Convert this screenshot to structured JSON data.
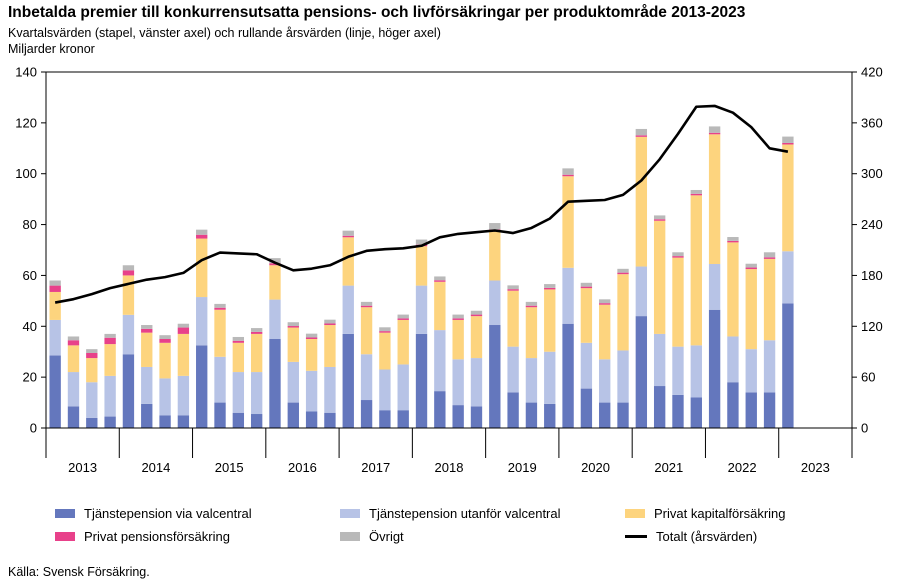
{
  "title": "Inbetalda premier till konkurrensutsatta pensions- och livförsäkringar per produktområde 2013-2023",
  "subtitle": "Kvartalsvärden (stapel, vänster axel) och rullande årsvärden (linje, höger axel)",
  "unit_label": "Miljarder kronor",
  "source": "Källa: Svensk Försäkring.",
  "colors": {
    "tjanst_valcentral": "#6477bd",
    "tjanst_utanfor": "#b7c3e6",
    "privat_kapital": "#fdd47e",
    "privat_pension": "#e8418a",
    "ovrigt": "#b9b9b9",
    "total": "#000000"
  },
  "chart_data": {
    "type": "bar",
    "stacked": true,
    "years": [
      "2013",
      "2014",
      "2015",
      "2016",
      "2017",
      "2018",
      "2019",
      "2020",
      "2021",
      "2022",
      "2023"
    ],
    "quarters_per_year": 4,
    "y_left": {
      "min": 0,
      "max": 140,
      "ticks": [
        0,
        20,
        40,
        60,
        80,
        100,
        120,
        140
      ]
    },
    "y_right": {
      "min": 0,
      "max": 420,
      "ticks": [
        0,
        60,
        120,
        180,
        240,
        300,
        360,
        420
      ]
    },
    "grid": false,
    "legend_position": "bottom",
    "series": [
      {
        "key": "tjanst_valcentral",
        "name": "Tjänstepension via valcentral",
        "values": [
          28.5,
          8.5,
          4,
          4.5,
          29,
          9.5,
          5,
          5,
          32.5,
          10,
          6,
          5.5,
          35,
          10,
          6.5,
          6,
          37,
          11,
          7,
          7,
          37,
          14.5,
          9,
          8.5,
          40.5,
          14,
          10,
          9.5,
          41,
          15.5,
          10,
          10,
          44,
          16.5,
          13,
          12,
          46.5,
          18,
          14,
          14,
          49,
          null,
          null,
          null
        ]
      },
      {
        "key": "tjanst_utanfor",
        "name": "Tjänstepension utanför valcentral",
        "values": [
          14,
          13.5,
          14,
          16,
          15.5,
          14.5,
          14.5,
          15.5,
          19,
          18,
          16,
          16.5,
          15.5,
          16,
          16,
          18,
          19,
          18,
          16,
          18,
          19,
          24,
          18,
          19,
          17.5,
          18,
          17.5,
          20.5,
          22,
          18,
          17,
          20.5,
          19.5,
          20.5,
          19,
          20.5,
          18,
          18,
          17,
          20.5,
          20.5,
          null,
          null,
          null
        ]
      },
      {
        "key": "privat_kapital",
        "name": "Privat kapitalförsäkring",
        "values": [
          11,
          10.5,
          9.5,
          12.5,
          15.5,
          13.5,
          14,
          16.5,
          23,
          18.5,
          11.5,
          15,
          13.5,
          13.5,
          12.5,
          16.5,
          19,
          18.5,
          14.5,
          17.5,
          15.5,
          19,
          15.5,
          16.5,
          19.5,
          22,
          20,
          24.5,
          36,
          21.5,
          21.5,
          30,
          51,
          44.5,
          35,
          59,
          51,
          37,
          31.5,
          32,
          42,
          null,
          null,
          null
        ]
      },
      {
        "key": "privat_pension",
        "name": "Privat pensionsförsäkring",
        "values": [
          2.5,
          2,
          2,
          2.5,
          2,
          1.5,
          1.5,
          2.5,
          1.5,
          0.8,
          0.8,
          0.8,
          0.8,
          0.6,
          0.6,
          0.6,
          0.6,
          0.6,
          0.6,
          0.6,
          0.6,
          0.6,
          0.6,
          0.6,
          0.6,
          0.6,
          0.6,
          0.6,
          0.6,
          0.6,
          0.6,
          0.6,
          0.6,
          0.6,
          0.6,
          0.6,
          0.6,
          0.6,
          0.6,
          0.6,
          0.6,
          null,
          null,
          null
        ]
      },
      {
        "key": "ovrigt",
        "name": "Övrigt",
        "values": [
          2,
          1.5,
          1.5,
          1.5,
          2,
          1.5,
          1.5,
          1.5,
          2,
          1.5,
          1.5,
          1.5,
          2,
          1.5,
          1.5,
          1.5,
          2,
          1.5,
          1.5,
          1.5,
          2,
          1.5,
          1.5,
          1.5,
          2.5,
          1.5,
          1.5,
          1.5,
          2.5,
          1.5,
          1.5,
          1.5,
          2.5,
          1.5,
          1.5,
          1.5,
          2.5,
          1.5,
          1.5,
          2,
          2.5,
          null,
          null,
          null
        ]
      }
    ],
    "line": {
      "key": "total",
      "name": "Totalt (årsvärden)",
      "axis": "right",
      "values": [
        148,
        152,
        158,
        165,
        170,
        175,
        178,
        183,
        198,
        207,
        206,
        205,
        195,
        186,
        188,
        192,
        202,
        209,
        211,
        212,
        215,
        225,
        229,
        231,
        233,
        230,
        236,
        247,
        267,
        268,
        269,
        275,
        292,
        317,
        347,
        379,
        380,
        372,
        355,
        330,
        326,
        null,
        null,
        null
      ]
    }
  }
}
